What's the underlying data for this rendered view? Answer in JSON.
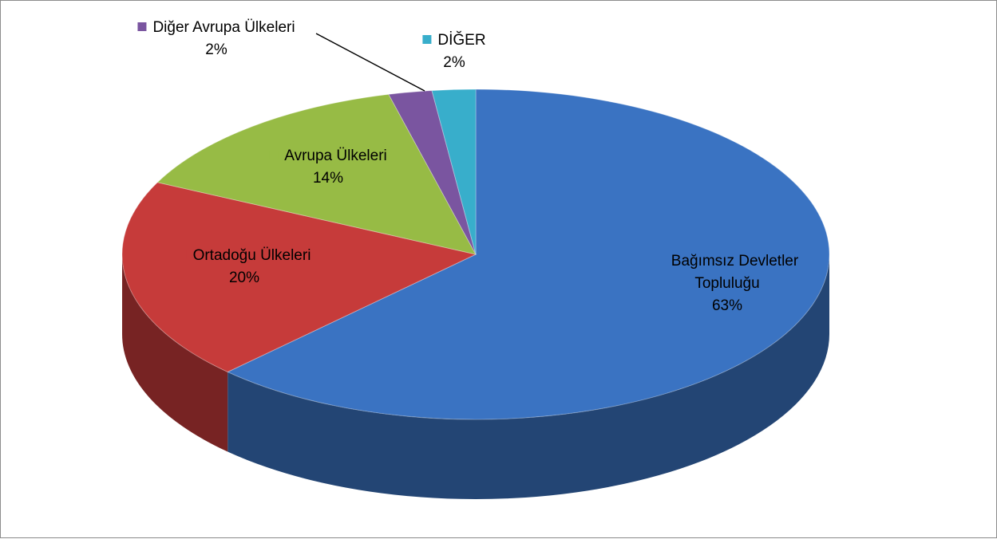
{
  "chart_data": {
    "type": "pie",
    "categories": [
      "Bağımsız Devletler Topluluğu",
      "Ortadoğu Ülkeleri",
      "Avrupa Ülkeleri",
      "Diğer Avrupa Ülkeleri",
      "DİĞER"
    ],
    "values": [
      63,
      20,
      14,
      2,
      2
    ],
    "value_labels": [
      "63%",
      "20%",
      "14%",
      "2%",
      "2%"
    ],
    "colors": [
      "#3a73c2",
      "#c63b3a",
      "#97bb45",
      "#7a55a0",
      "#38aecb"
    ]
  }
}
